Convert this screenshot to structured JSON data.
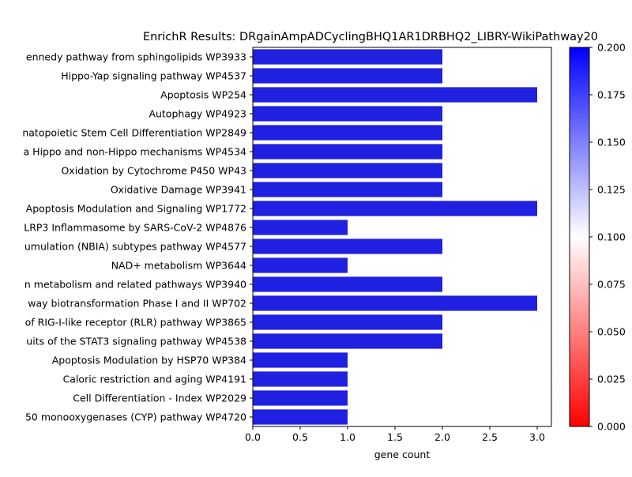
{
  "chart_data": {
    "type": "bar",
    "orientation": "horizontal",
    "title": "EnrichR Results: DRgainAmpADCyclingBHQ1AR1DRBHQ2_LIBRY-WikiPathway20",
    "xlabel": "gene count",
    "ylabel": "",
    "xlim": [
      0,
      3.15
    ],
    "xticks": [
      "0.0",
      "0.5",
      "1.0",
      "1.5",
      "2.0",
      "2.5",
      "3.0"
    ],
    "categories": [
      "ennedy pathway from sphingolipids WP3933",
      "Hippo-Yap signaling pathway WP4537",
      "Apoptosis WP254",
      "Autophagy WP4923",
      "natopoietic Stem Cell Differentiation WP2849",
      "a Hippo and non-Hippo mechanisms WP4534",
      "Oxidation by Cytochrome P450 WP43",
      "Oxidative Damage WP3941",
      "Apoptosis Modulation and Signaling WP1772",
      "LRP3 Inflammasome by SARS-CoV-2 WP4876",
      "umulation (NBIA) subtypes pathway WP4577",
      "NAD+ metabolism WP3644",
      "n metabolism and related pathways WP3940",
      "way biotransformation Phase I and II WP702",
      "of RIG-I-like receptor (RLR) pathway WP3865",
      "uits of the STAT3 signaling pathway WP4538",
      "Apoptosis Modulation by HSP70 WP384",
      "Caloric restriction and aging WP4191",
      "Cell Differentiation - Index WP2029",
      "50 monooxygenases (CYP) pathway WP4720"
    ],
    "values": [
      2,
      2,
      3,
      2,
      2,
      2,
      2,
      2,
      3,
      1,
      2,
      1,
      2,
      3,
      2,
      2,
      1,
      1,
      1,
      1
    ],
    "bar_color": "#2020e0",
    "colorbar": {
      "range": [
        0.0,
        0.2
      ],
      "ticks": [
        "0.000",
        "0.025",
        "0.050",
        "0.075",
        "0.100",
        "0.125",
        "0.150",
        "0.175",
        "0.200"
      ],
      "colors": [
        "#ff0000",
        "#ffffff",
        "#0000ff"
      ]
    },
    "grid": false
  }
}
